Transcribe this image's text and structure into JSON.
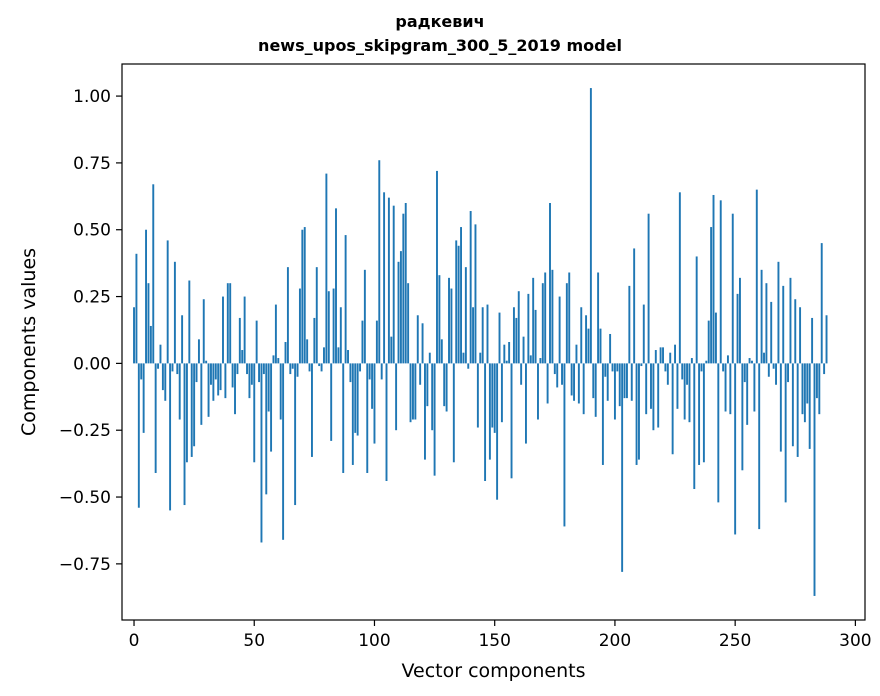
{
  "chart_data": {
    "type": "bar",
    "title_line1": "радкевич",
    "title_line2": "news_upos_skipgram_300_5_2019 model",
    "xlabel": "Vector components",
    "ylabel": "Components values",
    "xlim": [
      -5,
      304
    ],
    "ylim": [
      -0.96,
      1.12
    ],
    "xticks": [
      0,
      50,
      100,
      150,
      200,
      250,
      300
    ],
    "yticks": [
      -0.75,
      -0.5,
      -0.25,
      0.0,
      0.25,
      0.5,
      0.75,
      1.0
    ],
    "xtick_labels": [
      "0",
      "50",
      "100",
      "150",
      "200",
      "250",
      "300"
    ],
    "ytick_labels": [
      "−0.75",
      "−0.50",
      "−0.25",
      "0.00",
      "0.25",
      "0.50",
      "0.75",
      "1.00"
    ],
    "bar_color": "#1f77b4",
    "values": [
      0.21,
      0.41,
      -0.54,
      -0.06,
      -0.26,
      0.5,
      0.3,
      0.14,
      0.67,
      -0.41,
      -0.02,
      0.07,
      -0.1,
      -0.14,
      0.46,
      -0.55,
      -0.03,
      0.38,
      -0.04,
      -0.21,
      0.18,
      -0.53,
      -0.37,
      0.31,
      -0.35,
      -0.31,
      -0.07,
      0.09,
      -0.23,
      0.24,
      0.01,
      -0.2,
      -0.08,
      -0.14,
      -0.06,
      -0.12,
      -0.1,
      0.25,
      -0.13,
      0.3,
      0.3,
      -0.09,
      -0.19,
      -0.04,
      0.17,
      0.05,
      0.25,
      -0.04,
      -0.13,
      -0.08,
      -0.37,
      0.16,
      -0.07,
      -0.67,
      -0.04,
      -0.49,
      -0.18,
      -0.33,
      0.03,
      0.22,
      0.02,
      -0.21,
      -0.66,
      0.08,
      0.36,
      -0.04,
      -0.02,
      -0.53,
      -0.05,
      0.28,
      0.5,
      0.51,
      0.09,
      -0.03,
      -0.35,
      0.17,
      0.36,
      -0.01,
      -0.03,
      0.06,
      0.71,
      0.27,
      -0.29,
      0.28,
      0.58,
      0.06,
      0.21,
      -0.41,
      0.48,
      0.05,
      -0.07,
      -0.38,
      -0.26,
      -0.27,
      -0.03,
      0.16,
      0.35,
      -0.41,
      -0.06,
      -0.17,
      -0.3,
      0.16,
      0.76,
      -0.06,
      0.64,
      -0.44,
      0.62,
      0.1,
      0.59,
      -0.25,
      0.38,
      0.42,
      0.56,
      0.6,
      0.3,
      -0.22,
      -0.21,
      -0.21,
      0.18,
      -0.08,
      0.15,
      -0.36,
      -0.16,
      0.04,
      -0.25,
      -0.42,
      0.72,
      0.33,
      0.09,
      -0.16,
      -0.18,
      0.32,
      0.28,
      -0.37,
      0.46,
      0.44,
      0.51,
      0.04,
      0.36,
      -0.02,
      0.57,
      0.21,
      0.52,
      -0.24,
      0.04,
      0.21,
      -0.44,
      0.22,
      -0.36,
      -0.24,
      -0.26,
      -0.51,
      0.19,
      -0.22,
      0.07,
      0.01,
      0.08,
      -0.43,
      0.21,
      0.17,
      0.27,
      -0.08,
      0.1,
      -0.3,
      0.26,
      0.03,
      0.32,
      0.2,
      -0.21,
      0.02,
      0.3,
      0.34,
      -0.15,
      0.6,
      0.35,
      -0.04,
      -0.09,
      0.25,
      -0.08,
      -0.61,
      0.3,
      0.34,
      -0.12,
      -0.14,
      0.07,
      -0.15,
      0.21,
      -0.19,
      0.18,
      0.13,
      1.03,
      -0.13,
      -0.2,
      0.34,
      0.13,
      -0.38,
      -0.05,
      -0.14,
      0.11,
      -0.03,
      -0.21,
      -0.03,
      -0.16,
      -0.78,
      -0.13,
      -0.13,
      0.29,
      -0.14,
      0.43,
      -0.38,
      -0.36,
      -0.01,
      0.22,
      -0.19,
      0.56,
      -0.17,
      -0.25,
      0.05,
      -0.24,
      0.06,
      0.06,
      -0.03,
      -0.08,
      0.04,
      -0.34,
      0.07,
      -0.17,
      0.64,
      -0.06,
      -0.21,
      -0.08,
      -0.22,
      0.02,
      -0.47,
      0.4,
      -0.38,
      -0.03,
      -0.37,
      0.01,
      0.16,
      0.51,
      0.63,
      0.19,
      -0.52,
      0.61,
      -0.03,
      -0.18,
      0.03,
      -0.19,
      0.56,
      -0.64,
      0.26,
      0.32,
      -0.4,
      -0.07,
      -0.23,
      0.02,
      0.01,
      -0.18,
      0.65,
      -0.62,
      0.35,
      0.04,
      0.3,
      -0.05,
      0.23,
      -0.02,
      -0.08,
      0.38,
      -0.33,
      0.29,
      -0.52,
      -0.07,
      0.32,
      -0.31,
      0.24,
      -0.35,
      0.21,
      -0.19,
      -0.22,
      -0.15,
      -0.32,
      0.17,
      -0.87,
      -0.13,
      -0.19,
      0.45,
      -0.04,
      0.18
    ]
  }
}
